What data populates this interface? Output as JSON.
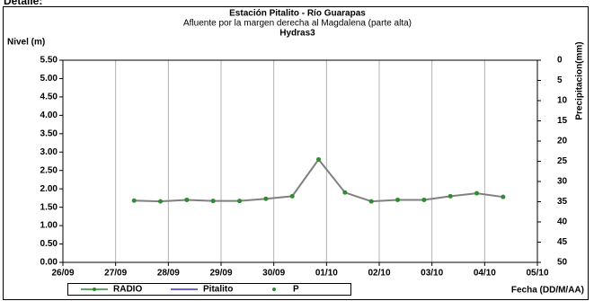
{
  "header": "Detalle:",
  "chart_data": {
    "type": "line",
    "title": "Estación Pitalito  - Río Guarapas",
    "subtitle": "Afluente por la margen derecha al Magdalena (parte alta)",
    "subtitle2": "Hydras3",
    "y_label": "Nivel (m)",
    "y2_label": "Precipitacion(mm)",
    "x_label": "Fecha (DD/M/AA)",
    "xlim": [
      0,
      9
    ],
    "xticks": [
      {
        "value": 0,
        "label": "26/09"
      },
      {
        "value": 1,
        "label": "27/09"
      },
      {
        "value": 2,
        "label": "28/09"
      },
      {
        "value": 3,
        "label": "29/09"
      },
      {
        "value": 4,
        "label": "30/09"
      },
      {
        "value": 5,
        "label": "01/10"
      },
      {
        "value": 6,
        "label": "02/10"
      },
      {
        "value": 7,
        "label": "03/10"
      },
      {
        "value": 8,
        "label": "04/10"
      },
      {
        "value": 9,
        "label": "05/10"
      }
    ],
    "ylim": [
      0,
      5.5
    ],
    "yticks": [
      {
        "value": 0,
        "label": "0.00"
      },
      {
        "value": 0.5,
        "label": "0.50"
      },
      {
        "value": 1,
        "label": "1.00"
      },
      {
        "value": 1.5,
        "label": "1.50"
      },
      {
        "value": 2,
        "label": "2.00"
      },
      {
        "value": 2.5,
        "label": "2.50"
      },
      {
        "value": 3,
        "label": "3.00"
      },
      {
        "value": 3.5,
        "label": "3.50"
      },
      {
        "value": 4,
        "label": "4.00"
      },
      {
        "value": 4.5,
        "label": "4.50"
      },
      {
        "value": 5,
        "label": "5.00"
      },
      {
        "value": 5.5,
        "label": "5.50"
      }
    ],
    "y2lim": [
      0,
      50
    ],
    "y2_inverted": true,
    "y2ticks": [
      0,
      5,
      10,
      15,
      20,
      25,
      30,
      35,
      40,
      45,
      50
    ],
    "grid": true,
    "legend": "bottom",
    "series": [
      {
        "name": "RADIO",
        "color": "#808080",
        "marker_color": "#2e8b2e",
        "x": [
          1.35,
          1.85,
          2.35,
          2.85,
          3.35,
          3.85,
          4.35,
          4.85,
          5.35,
          5.85,
          6.35,
          6.85,
          7.35,
          7.85,
          8.35
        ],
        "values": [
          1.68,
          1.66,
          1.7,
          1.67,
          1.67,
          1.73,
          1.8,
          2.8,
          1.9,
          1.66,
          1.7,
          1.7,
          1.8,
          1.88,
          1.78
        ]
      },
      {
        "name": "Pitalito",
        "color": "#3333cc",
        "x": [],
        "values": []
      },
      {
        "name": "P",
        "color": "#2e8b2e",
        "axis": "y2",
        "x": [],
        "values": []
      }
    ]
  }
}
